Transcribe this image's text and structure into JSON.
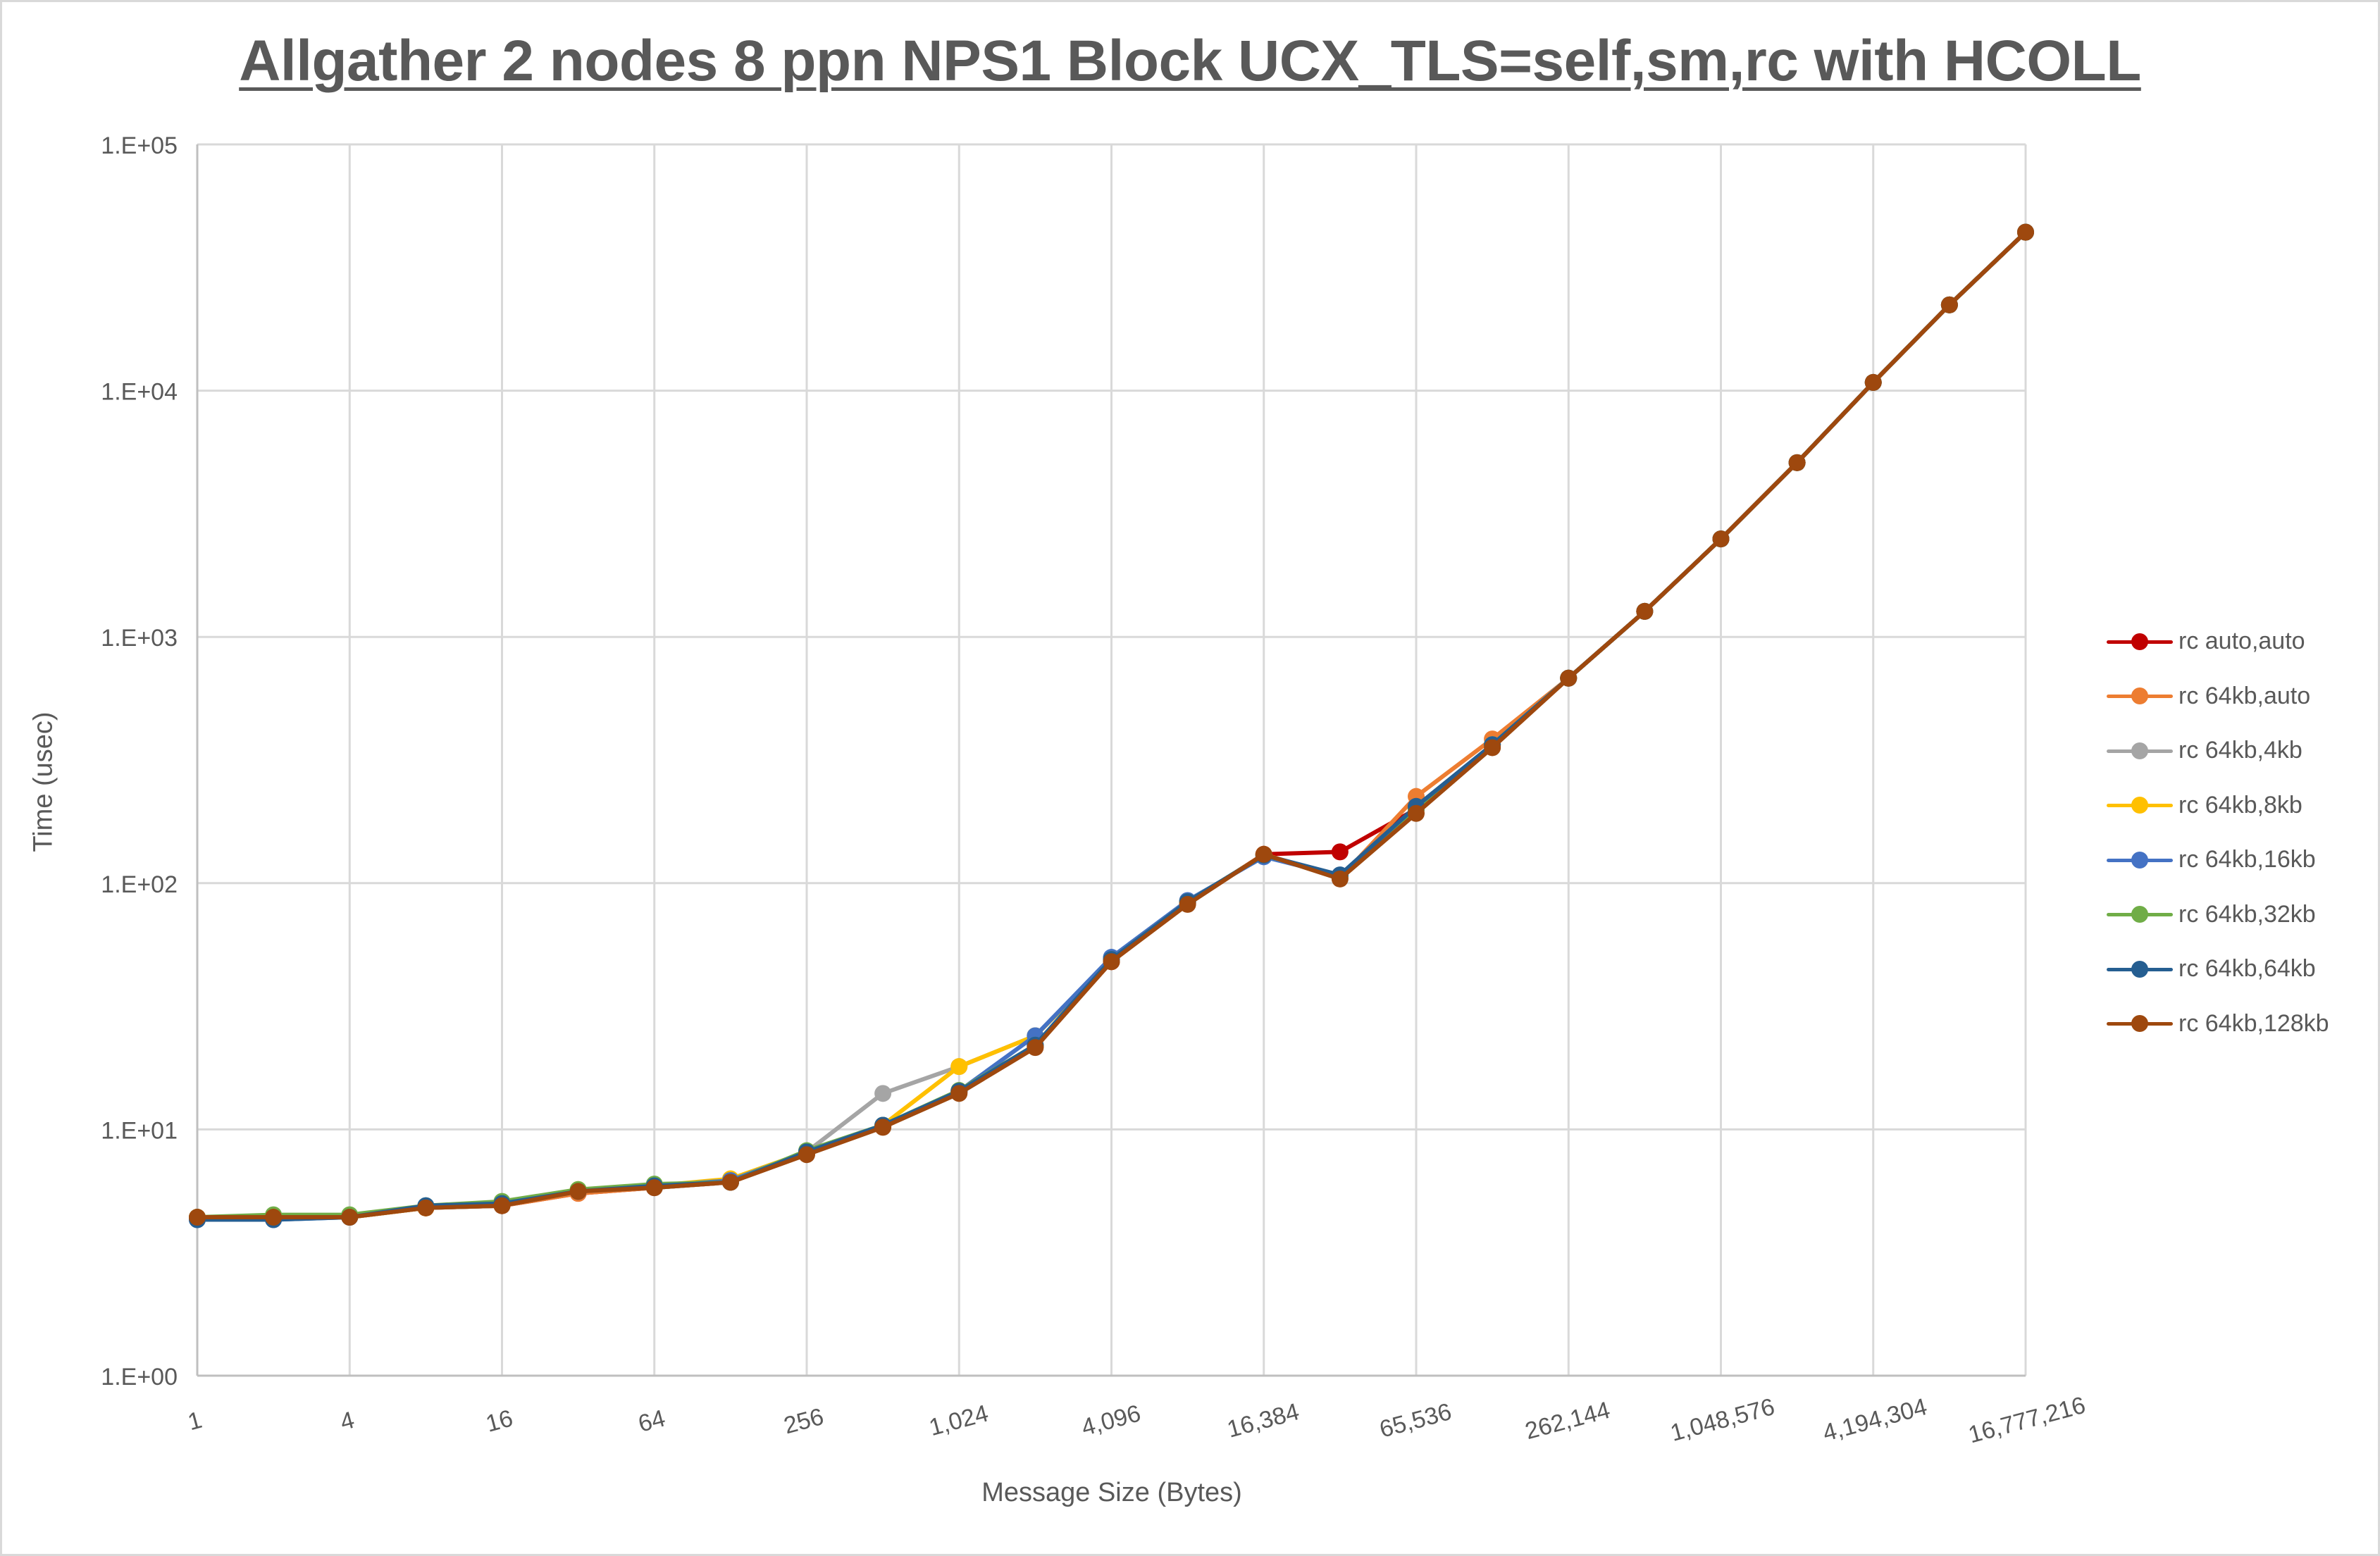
{
  "chart_data": {
    "type": "line",
    "title": "Allgather 2 nodes 8 ppn NPS1 Block UCX_TLS=self,sm,rc with HCOLL",
    "xlabel": "Message Size (Bytes)",
    "ylabel": "Time (usec)",
    "x_scale": "log2",
    "y_scale": "log10",
    "ylim": [
      1,
      100000
    ],
    "grid": true,
    "legend_position": "right",
    "x": [
      1,
      2,
      4,
      8,
      16,
      32,
      64,
      128,
      256,
      512,
      1024,
      2048,
      4096,
      8192,
      16384,
      32768,
      65536,
      131072,
      262144,
      524288,
      1048576,
      2097152,
      4194304,
      8388608,
      16777216
    ],
    "x_tick_labels": [
      "1",
      "4",
      "16",
      "64",
      "256",
      "1,024",
      "4,096",
      "16,384",
      "65,536",
      "262,144",
      "1,048,576",
      "4,194,304",
      "16,777,216"
    ],
    "y_tick_labels": [
      "1.E+00",
      "1.E+01",
      "1.E+02",
      "1.E+03",
      "1.E+04",
      "1.E+05"
    ],
    "series": [
      {
        "name": "rc auto,auto",
        "color": "#c00000",
        "values": [
          4.4,
          4.4,
          4.4,
          4.8,
          4.9,
          5.5,
          5.8,
          6.1,
          8.0,
          10.3,
          14.2,
          21.8,
          48,
          83,
          131,
          134,
          200,
          360,
          680,
          1270,
          2500,
          5100,
          10800,
          22300,
          44000
        ]
      },
      {
        "name": "rc 64kb,auto",
        "color": "#ed7d31",
        "values": [
          4.4,
          4.4,
          4.4,
          4.8,
          4.9,
          5.5,
          5.8,
          6.1,
          8.0,
          10.3,
          14.2,
          21.8,
          48,
          83,
          131,
          105,
          225,
          385,
          680,
          1270,
          2500,
          5100,
          10800,
          22300,
          44000
        ]
      },
      {
        "name": "rc 64kb,4kb",
        "color": "#a5a5a5",
        "values": [
          4.4,
          4.4,
          4.4,
          4.8,
          4.9,
          5.6,
          5.8,
          6.1,
          8.1,
          14.0,
          18.0,
          24.0,
          49,
          84,
          130,
          107,
          200,
          365,
          680,
          1270,
          2500,
          5100,
          10800,
          22300,
          44000
        ]
      },
      {
        "name": "rc 64kb,8kb",
        "color": "#ffc000",
        "values": [
          4.4,
          4.4,
          4.4,
          4.8,
          5.0,
          5.7,
          5.9,
          6.3,
          8.1,
          10.4,
          18.0,
          24.0,
          49,
          84,
          130,
          107,
          200,
          365,
          680,
          1270,
          2500,
          5100,
          10800,
          22300,
          44000
        ]
      },
      {
        "name": "rc 64kb,16kb",
        "color": "#4472c4",
        "values": [
          4.3,
          4.3,
          4.4,
          4.9,
          5.0,
          5.6,
          5.9,
          6.2,
          8.1,
          10.4,
          14.3,
          24.0,
          50,
          85,
          128,
          107,
          200,
          365,
          680,
          1270,
          2500,
          5100,
          10800,
          22300,
          44000
        ]
      },
      {
        "name": "rc 64kb,32kb",
        "color": "#70ad47",
        "values": [
          4.4,
          4.5,
          4.5,
          4.9,
          5.1,
          5.7,
          6.0,
          6.1,
          8.2,
          10.4,
          14.4,
          22.0,
          49,
          84,
          130,
          107,
          200,
          365,
          680,
          1270,
          2500,
          5100,
          10800,
          22300,
          44000
        ]
      },
      {
        "name": "rc 64kb,64kb",
        "color": "#255e91",
        "values": [
          4.3,
          4.3,
          4.4,
          4.9,
          5.0,
          5.6,
          5.9,
          6.1,
          8.1,
          10.4,
          14.3,
          22.0,
          49,
          84,
          130,
          108,
          205,
          365,
          680,
          1270,
          2500,
          5100,
          10800,
          22300,
          44000
        ]
      },
      {
        "name": "rc 64kb,128kb",
        "color": "#9e480e",
        "values": [
          4.4,
          4.4,
          4.4,
          4.8,
          4.9,
          5.6,
          5.8,
          6.1,
          7.9,
          10.2,
          14.0,
          21.5,
          48,
          82,
          131,
          104,
          192,
          355,
          680,
          1270,
          2500,
          5100,
          10800,
          22300,
          44000
        ]
      }
    ]
  },
  "title": "Allgather 2 nodes 8 ppn NPS1 Block UCX_TLS=self,sm,rc with HCOLL",
  "axes": {
    "x_title": "Message Size (Bytes)",
    "y_title": "Time (usec)"
  },
  "legend": {
    "items": [
      {
        "label": "rc auto,auto",
        "color": "#c00000"
      },
      {
        "label": "rc 64kb,auto",
        "color": "#ed7d31"
      },
      {
        "label": "rc 64kb,4kb",
        "color": "#a5a5a5"
      },
      {
        "label": "rc 64kb,8kb",
        "color": "#ffc000"
      },
      {
        "label": "rc 64kb,16kb",
        "color": "#4472c4"
      },
      {
        "label": "rc 64kb,32kb",
        "color": "#70ad47"
      },
      {
        "label": "rc 64kb,64kb",
        "color": "#255e91"
      },
      {
        "label": "rc 64kb,128kb",
        "color": "#9e480e"
      }
    ]
  }
}
